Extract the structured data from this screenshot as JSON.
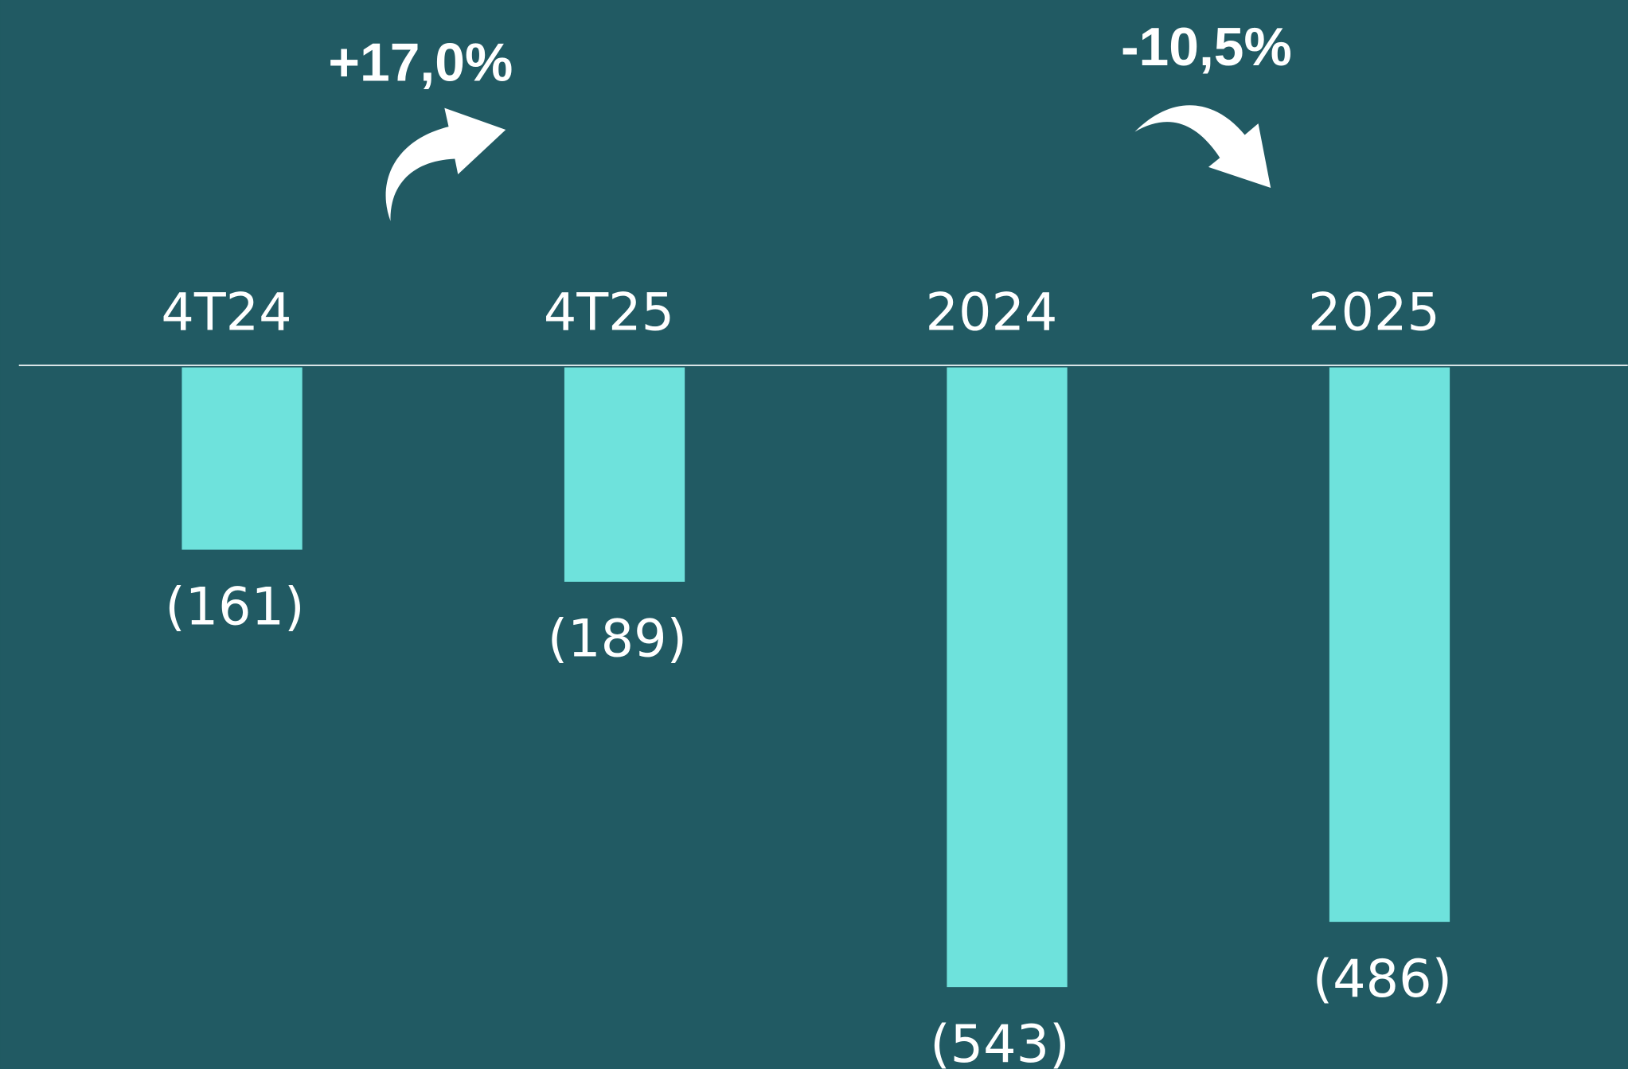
{
  "chart_data": {
    "type": "bar",
    "categories": [
      "4T24",
      "4T25",
      "2024",
      "2025"
    ],
    "values": [
      -161,
      -189,
      -543,
      -486
    ],
    "value_labels": [
      "(161)",
      "(189)",
      "(543)",
      "(486)"
    ],
    "color": "#6ee2dc",
    "ylim": [
      -600,
      0
    ],
    "annotations": [
      "+17,0%",
      "-10,5%"
    ]
  }
}
